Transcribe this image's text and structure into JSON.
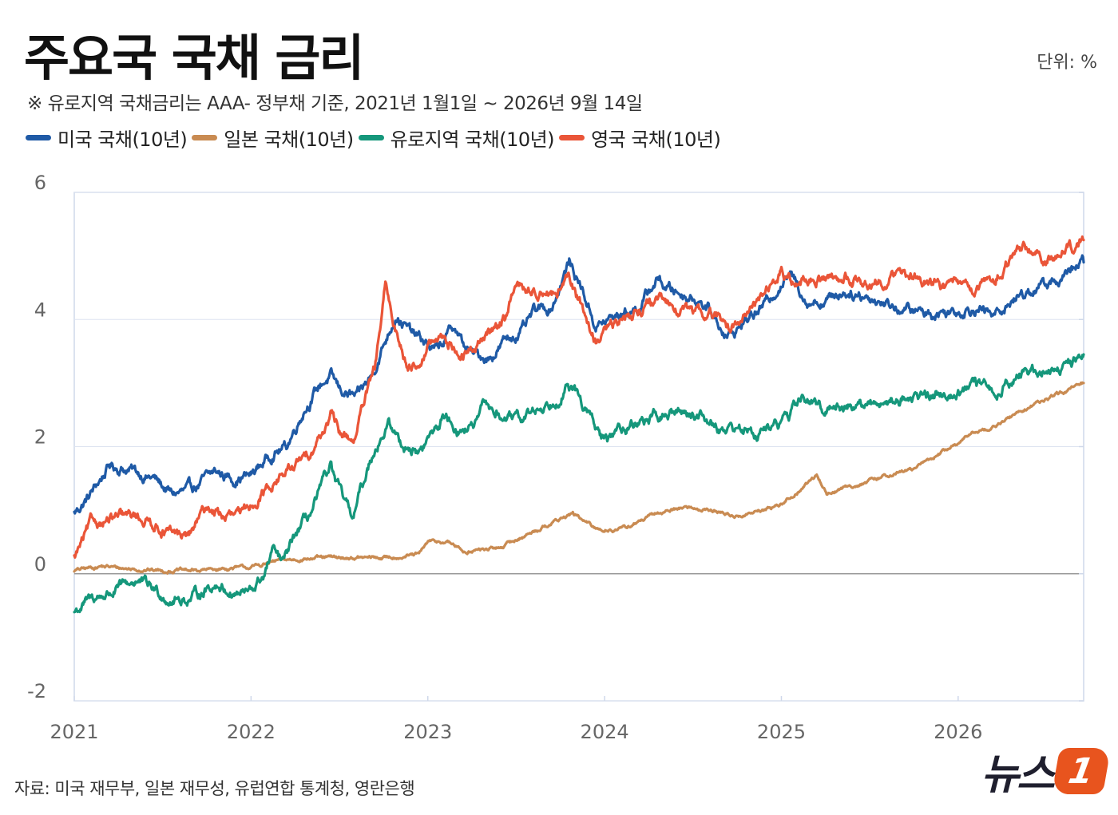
{
  "header": {
    "title": "주요국 국채 금리",
    "unit": "단위: %",
    "subtitle": "※ 유로지역 국채금리는 AAA- 정부채 기준,  2021년 1월1일 ~ 2026년 9월 14일"
  },
  "footer": {
    "source": "자료: 미국 재무부, 일본 재무성, 유럽연합 통계청, 영란은행",
    "logo_text": "뉴스",
    "logo_badge": "1"
  },
  "chart_data": {
    "type": "line",
    "x_unit": "year",
    "x_ticks": [
      "2021",
      "2022",
      "2023",
      "2024",
      "2025",
      "2026"
    ],
    "y_ticks": [
      "6",
      "4",
      "2",
      "0",
      "-2"
    ],
    "xlim": [
      2021.0,
      2026.71
    ],
    "ylim": [
      -2,
      6
    ],
    "grid": true,
    "legend_position": "top-left",
    "series": [
      {
        "name": "미국 국채(10년)",
        "color": "#1f5aa6",
        "points": [
          [
            2021.0,
            0.95
          ],
          [
            2021.08,
            1.2
          ],
          [
            2021.2,
            1.7
          ],
          [
            2021.3,
            1.65
          ],
          [
            2021.45,
            1.5
          ],
          [
            2021.55,
            1.25
          ],
          [
            2021.65,
            1.3
          ],
          [
            2021.8,
            1.6
          ],
          [
            2021.9,
            1.5
          ],
          [
            2022.0,
            1.55
          ],
          [
            2022.12,
            1.9
          ],
          [
            2022.2,
            2.0
          ],
          [
            2022.3,
            2.6
          ],
          [
            2022.4,
            3.0
          ],
          [
            2022.45,
            3.1
          ],
          [
            2022.5,
            2.9
          ],
          [
            2022.6,
            2.75
          ],
          [
            2022.68,
            3.1
          ],
          [
            2022.75,
            3.6
          ],
          [
            2022.82,
            4.1
          ],
          [
            2022.9,
            3.8
          ],
          [
            2022.95,
            3.7
          ],
          [
            2023.05,
            3.5
          ],
          [
            2023.15,
            3.9
          ],
          [
            2023.2,
            3.6
          ],
          [
            2023.25,
            3.45
          ],
          [
            2023.35,
            3.4
          ],
          [
            2023.45,
            3.7
          ],
          [
            2023.55,
            3.85
          ],
          [
            2023.6,
            4.1
          ],
          [
            2023.7,
            4.2
          ],
          [
            2023.8,
            4.9
          ],
          [
            2023.87,
            4.5
          ],
          [
            2023.95,
            3.9
          ],
          [
            2024.0,
            3.95
          ],
          [
            2024.1,
            4.1
          ],
          [
            2024.2,
            4.2
          ],
          [
            2024.3,
            4.65
          ],
          [
            2024.35,
            4.5
          ],
          [
            2024.45,
            4.4
          ],
          [
            2024.55,
            4.3
          ],
          [
            2024.65,
            3.9
          ],
          [
            2024.72,
            3.75
          ],
          [
            2024.8,
            4.0
          ],
          [
            2024.9,
            4.2
          ],
          [
            2025.0,
            4.6
          ],
          [
            2025.05,
            4.7
          ],
          [
            2025.15,
            4.3
          ],
          [
            2025.25,
            4.3
          ],
          [
            2025.35,
            4.45
          ],
          [
            2025.45,
            4.4
          ],
          [
            2025.55,
            4.3
          ],
          [
            2025.7,
            4.15
          ],
          [
            2025.85,
            4.1
          ],
          [
            2026.0,
            4.15
          ],
          [
            2026.1,
            4.2
          ],
          [
            2026.2,
            4.05
          ],
          [
            2026.3,
            4.3
          ],
          [
            2026.4,
            4.45
          ],
          [
            2026.5,
            4.55
          ],
          [
            2026.6,
            4.65
          ],
          [
            2026.71,
            4.9
          ]
        ]
      },
      {
        "name": "일본 국채(10년)",
        "color": "#c98b52",
        "points": [
          [
            2021.0,
            0.05
          ],
          [
            2021.15,
            0.12
          ],
          [
            2021.3,
            0.08
          ],
          [
            2021.5,
            0.05
          ],
          [
            2021.7,
            0.05
          ],
          [
            2021.85,
            0.08
          ],
          [
            2022.0,
            0.1
          ],
          [
            2022.15,
            0.2
          ],
          [
            2022.3,
            0.24
          ],
          [
            2022.45,
            0.25
          ],
          [
            2022.6,
            0.25
          ],
          [
            2022.75,
            0.25
          ],
          [
            2022.95,
            0.3
          ],
          [
            2023.0,
            0.5
          ],
          [
            2023.1,
            0.5
          ],
          [
            2023.15,
            0.45
          ],
          [
            2023.2,
            0.35
          ],
          [
            2023.4,
            0.4
          ],
          [
            2023.55,
            0.6
          ],
          [
            2023.7,
            0.8
          ],
          [
            2023.82,
            0.95
          ],
          [
            2023.95,
            0.7
          ],
          [
            2024.1,
            0.7
          ],
          [
            2024.3,
            0.95
          ],
          [
            2024.45,
            1.05
          ],
          [
            2024.6,
            1.0
          ],
          [
            2024.75,
            0.9
          ],
          [
            2024.9,
            1.0
          ],
          [
            2025.0,
            1.1
          ],
          [
            2025.1,
            1.3
          ],
          [
            2025.2,
            1.55
          ],
          [
            2025.26,
            1.25
          ],
          [
            2025.35,
            1.35
          ],
          [
            2025.5,
            1.45
          ],
          [
            2025.6,
            1.55
          ],
          [
            2025.75,
            1.65
          ],
          [
            2025.9,
            1.9
          ],
          [
            2026.0,
            2.05
          ],
          [
            2026.1,
            2.25
          ],
          [
            2026.2,
            2.3
          ],
          [
            2026.35,
            2.55
          ],
          [
            2026.5,
            2.75
          ],
          [
            2026.6,
            2.85
          ],
          [
            2026.71,
            3.0
          ]
        ]
      },
      {
        "name": "유로지역 국채(10년)",
        "color": "#15977b",
        "points": [
          [
            2021.0,
            -0.6
          ],
          [
            2021.1,
            -0.4
          ],
          [
            2021.25,
            -0.25
          ],
          [
            2021.35,
            -0.1
          ],
          [
            2021.45,
            -0.25
          ],
          [
            2021.55,
            -0.4
          ],
          [
            2021.65,
            -0.4
          ],
          [
            2021.8,
            -0.15
          ],
          [
            2021.9,
            -0.3
          ],
          [
            2022.0,
            -0.3
          ],
          [
            2022.08,
            0.0
          ],
          [
            2022.12,
            0.35
          ],
          [
            2022.18,
            0.15
          ],
          [
            2022.25,
            0.6
          ],
          [
            2022.35,
            1.0
          ],
          [
            2022.45,
            1.7
          ],
          [
            2022.48,
            1.4
          ],
          [
            2022.55,
            1.0
          ],
          [
            2022.58,
            0.9
          ],
          [
            2022.62,
            1.3
          ],
          [
            2022.7,
            2.0
          ],
          [
            2022.78,
            2.35
          ],
          [
            2022.85,
            2.05
          ],
          [
            2022.95,
            1.9
          ],
          [
            2023.0,
            2.1
          ],
          [
            2023.1,
            2.5
          ],
          [
            2023.18,
            2.25
          ],
          [
            2023.28,
            2.35
          ],
          [
            2023.32,
            2.65
          ],
          [
            2023.4,
            2.5
          ],
          [
            2023.5,
            2.4
          ],
          [
            2023.6,
            2.55
          ],
          [
            2023.7,
            2.7
          ],
          [
            2023.78,
            2.95
          ],
          [
            2023.85,
            2.8
          ],
          [
            2023.92,
            2.45
          ],
          [
            2024.0,
            2.05
          ],
          [
            2024.1,
            2.3
          ],
          [
            2024.2,
            2.4
          ],
          [
            2024.35,
            2.5
          ],
          [
            2024.45,
            2.55
          ],
          [
            2024.55,
            2.5
          ],
          [
            2024.65,
            2.3
          ],
          [
            2024.75,
            2.3
          ],
          [
            2024.85,
            2.2
          ],
          [
            2024.95,
            2.3
          ],
          [
            2025.05,
            2.5
          ],
          [
            2025.12,
            2.8
          ],
          [
            2025.2,
            2.6
          ],
          [
            2025.35,
            2.65
          ],
          [
            2025.5,
            2.65
          ],
          [
            2025.65,
            2.75
          ],
          [
            2025.8,
            2.8
          ],
          [
            2025.95,
            2.85
          ],
          [
            2026.1,
            2.95
          ],
          [
            2026.2,
            2.85
          ],
          [
            2026.35,
            3.15
          ],
          [
            2026.45,
            3.2
          ],
          [
            2026.55,
            3.2
          ],
          [
            2026.71,
            3.45
          ]
        ]
      },
      {
        "name": "영국 국채(10년)",
        "color": "#ea5538",
        "points": [
          [
            2021.0,
            0.25
          ],
          [
            2021.1,
            0.8
          ],
          [
            2021.2,
            0.85
          ],
          [
            2021.35,
            0.9
          ],
          [
            2021.45,
            0.8
          ],
          [
            2021.55,
            0.6
          ],
          [
            2021.65,
            0.6
          ],
          [
            2021.75,
            1.05
          ],
          [
            2021.85,
            0.9
          ],
          [
            2021.95,
            0.9
          ],
          [
            2022.05,
            1.25
          ],
          [
            2022.15,
            1.5
          ],
          [
            2022.3,
            1.8
          ],
          [
            2022.4,
            2.2
          ],
          [
            2022.45,
            2.5
          ],
          [
            2022.5,
            2.2
          ],
          [
            2022.58,
            2.1
          ],
          [
            2022.62,
            2.5
          ],
          [
            2022.7,
            3.2
          ],
          [
            2022.76,
            4.5
          ],
          [
            2022.8,
            4.0
          ],
          [
            2022.88,
            3.3
          ],
          [
            2022.95,
            3.3
          ],
          [
            2023.0,
            3.6
          ],
          [
            2023.1,
            3.7
          ],
          [
            2023.2,
            3.4
          ],
          [
            2023.28,
            3.6
          ],
          [
            2023.35,
            3.8
          ],
          [
            2023.45,
            4.1
          ],
          [
            2023.5,
            4.6
          ],
          [
            2023.58,
            4.4
          ],
          [
            2023.65,
            4.5
          ],
          [
            2023.72,
            4.4
          ],
          [
            2023.8,
            4.6
          ],
          [
            2023.87,
            4.2
          ],
          [
            2023.95,
            3.65
          ],
          [
            2024.0,
            3.8
          ],
          [
            2024.15,
            4.1
          ],
          [
            2024.25,
            4.25
          ],
          [
            2024.35,
            4.25
          ],
          [
            2024.45,
            4.15
          ],
          [
            2024.55,
            4.1
          ],
          [
            2024.65,
            4.05
          ],
          [
            2024.7,
            3.85
          ],
          [
            2024.8,
            4.1
          ],
          [
            2024.9,
            4.4
          ],
          [
            2025.0,
            4.75
          ],
          [
            2025.05,
            4.6
          ],
          [
            2025.15,
            4.6
          ],
          [
            2025.3,
            4.7
          ],
          [
            2025.45,
            4.6
          ],
          [
            2025.55,
            4.6
          ],
          [
            2025.65,
            4.7
          ],
          [
            2025.8,
            4.65
          ],
          [
            2025.95,
            4.5
          ],
          [
            2026.1,
            4.5
          ],
          [
            2026.2,
            4.6
          ],
          [
            2026.3,
            5.0
          ],
          [
            2026.4,
            5.1
          ],
          [
            2026.5,
            4.95
          ],
          [
            2026.6,
            5.05
          ],
          [
            2026.71,
            5.25
          ]
        ]
      }
    ]
  }
}
